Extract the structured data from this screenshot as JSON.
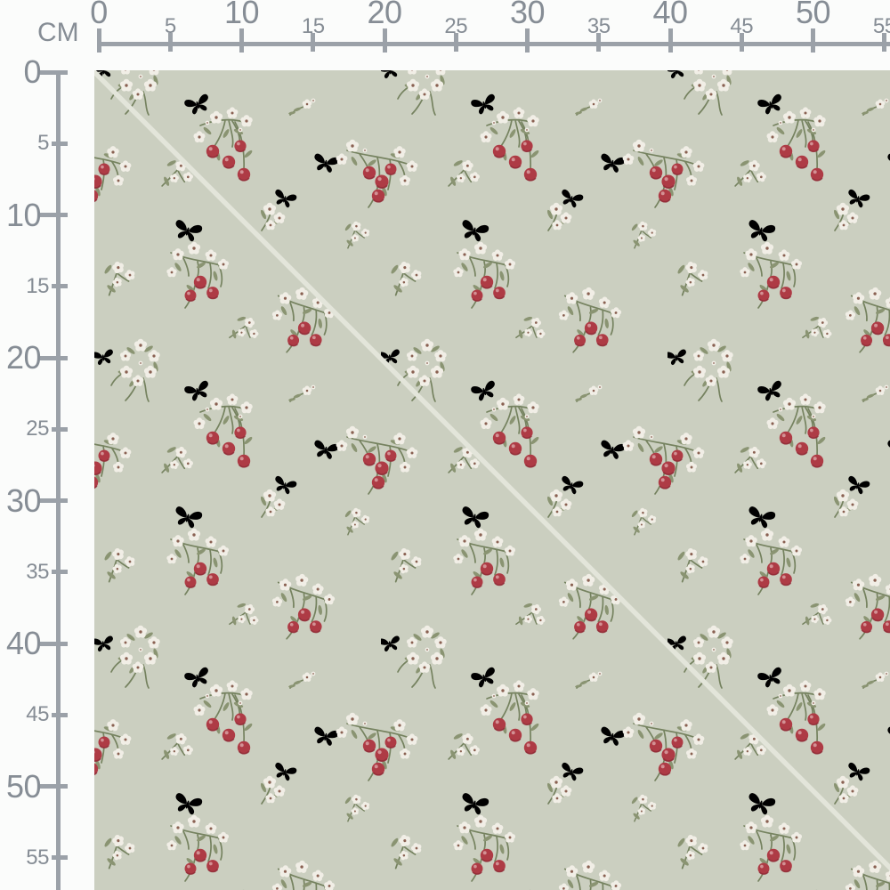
{
  "rulers": {
    "unit_label": "CM",
    "tick_values": [
      0,
      5,
      10,
      15,
      20,
      25,
      30,
      35,
      40,
      45,
      50,
      55
    ],
    "major_interval": 10
  },
  "fabric": {
    "pattern_motifs": [
      "cherry-cluster",
      "white-blossom-sprig",
      "blossom-cluster",
      "butterfly"
    ],
    "repeat_size_cm": 20,
    "seam_line": "diagonal-top-left-to-bottom-right"
  },
  "colors": {
    "page_bg": "#fbfcfb",
    "ruler_text": "#868d95",
    "ruler_line": "#9ba1a8",
    "fabric_bg": "#cbcfc0",
    "seam_line": "#e3e5da",
    "cherry_red": "#ae3b45",
    "cherry_dark": "#8e2b36",
    "cherry_highlight": "#daa0a2",
    "petal_white": "#f1eee6",
    "flower_center": "#8a6152",
    "leaf_green": "#8a9472",
    "stem_green": "#75825f",
    "butterfly_dark": "#46331f",
    "butterfly_spot": "#bd8244",
    "butterfly_orange": "#ab6c2e",
    "butterfly_orange_dark": "#53422e"
  }
}
